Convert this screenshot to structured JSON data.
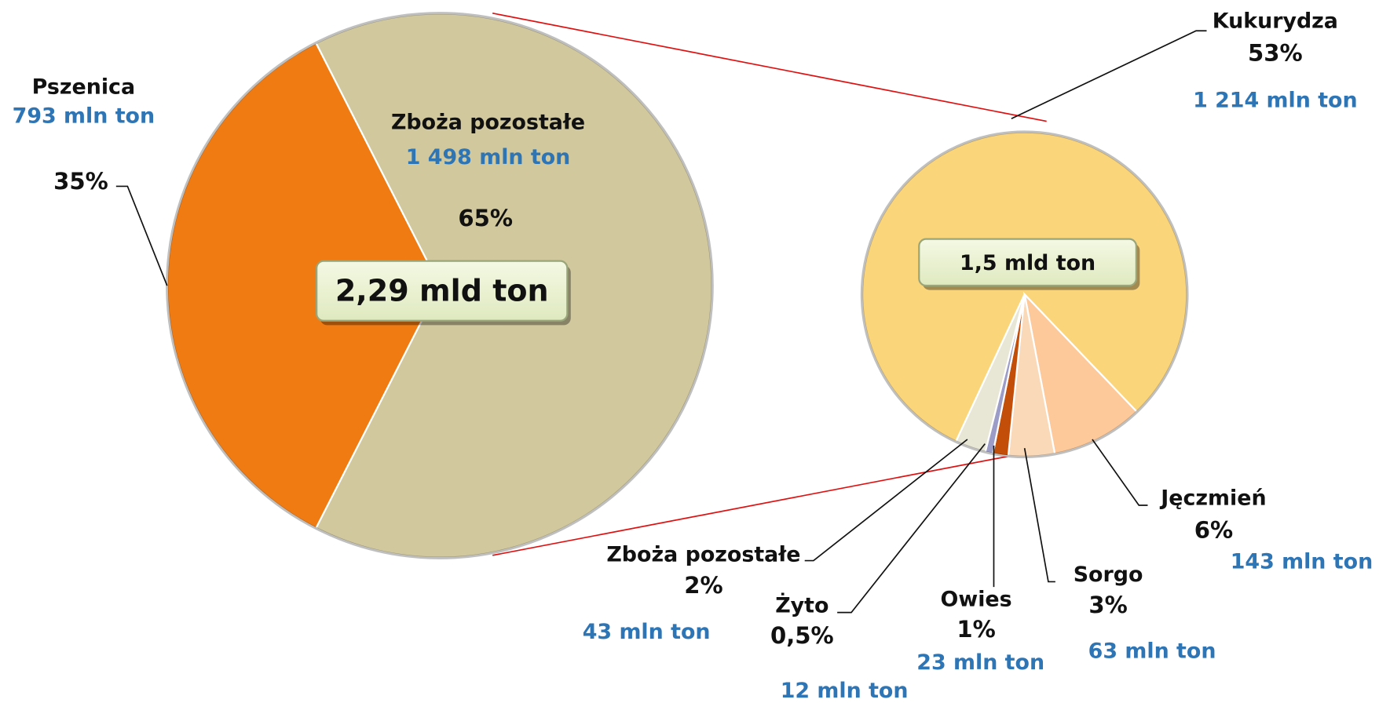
{
  "chart_data": [
    {
      "type": "pie",
      "total_label": "2,29 mld ton",
      "categories": [
        "Pszenica",
        "Zboża pozostałe"
      ],
      "values": [
        35,
        65
      ],
      "value_labels": [
        "35%",
        "65%"
      ],
      "amount_labels": [
        "793 mln ton",
        "1 498 mln ton"
      ],
      "colors": [
        "#f07b12",
        "#d1c89e"
      ]
    },
    {
      "type": "pie",
      "total_label": "1,5 mld ton",
      "categories": [
        "Kukurydza",
        "Jęczmień",
        "Sorgo",
        "Owies",
        "Żyto",
        "Zboża pozostałe"
      ],
      "values": [
        53,
        6,
        3,
        1,
        0.5,
        2
      ],
      "value_labels": [
        "53%",
        "6%",
        "3%",
        "1%",
        "0,5%",
        "2%"
      ],
      "amount_labels": [
        "1 214 mln ton",
        "143 mln ton",
        "63 mln ton",
        "23 mln ton",
        "12 mln ton",
        "43 mln ton"
      ],
      "colors": [
        "#fbd57a",
        "#fdc99a",
        "#fad9b8",
        "#c24e0a",
        "#9c9cc8",
        "#e8e6d5"
      ]
    }
  ]
}
